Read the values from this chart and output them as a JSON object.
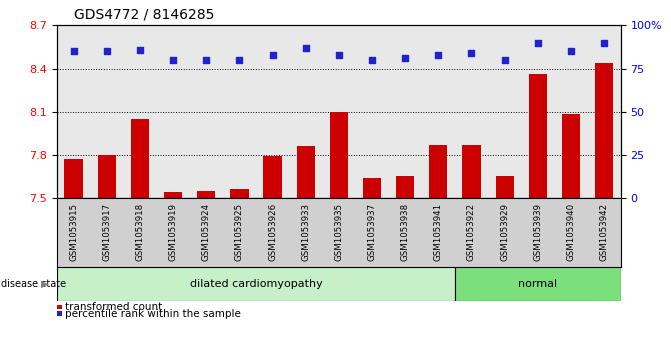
{
  "title": "GDS4772 / 8146285",
  "samples": [
    "GSM1053915",
    "GSM1053917",
    "GSM1053918",
    "GSM1053919",
    "GSM1053924",
    "GSM1053925",
    "GSM1053926",
    "GSM1053933",
    "GSM1053935",
    "GSM1053937",
    "GSM1053938",
    "GSM1053941",
    "GSM1053922",
    "GSM1053929",
    "GSM1053939",
    "GSM1053940",
    "GSM1053942"
  ],
  "transformed_count": [
    7.77,
    7.8,
    8.05,
    7.54,
    7.55,
    7.56,
    7.79,
    7.86,
    8.1,
    7.64,
    7.65,
    7.87,
    7.87,
    7.65,
    8.36,
    8.08,
    8.44
  ],
  "percentile_rank": [
    85,
    85,
    86,
    80,
    80,
    80,
    83,
    87,
    83,
    80,
    81,
    83,
    84,
    80,
    90,
    85,
    90
  ],
  "disease_groups": [
    {
      "label": "dilated cardiomyopathy",
      "start": 0,
      "end": 12,
      "color": "#c8f0c8"
    },
    {
      "label": "normal",
      "start": 12,
      "end": 17,
      "color": "#7be07b"
    }
  ],
  "ylim_left": [
    7.5,
    8.7
  ],
  "ylim_right": [
    0,
    100
  ],
  "yticks_left": [
    7.5,
    7.8,
    8.1,
    8.4,
    8.7
  ],
  "yticks_right": [
    0,
    25,
    50,
    75,
    100
  ],
  "ytick_labels_right": [
    "0",
    "25",
    "50",
    "75",
    "100%"
  ],
  "bar_color": "#cc0000",
  "dot_color": "#2222cc",
  "plot_bg": "#e8e8e8",
  "xtick_bg": "#d0d0d0",
  "legend_labels": [
    "transformed count",
    "percentile rank within the sample"
  ],
  "legend_colors": [
    "#cc0000",
    "#2222cc"
  ],
  "n_dilated": 12,
  "n_total": 17
}
